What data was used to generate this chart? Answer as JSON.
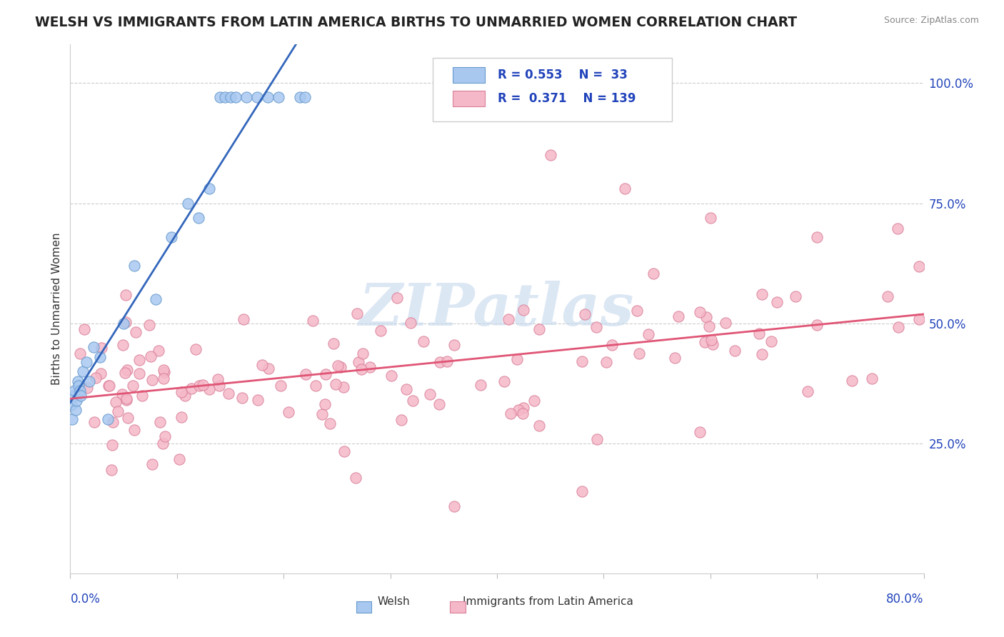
{
  "title": "WELSH VS IMMIGRANTS FROM LATIN AMERICA BIRTHS TO UNMARRIED WOMEN CORRELATION CHART",
  "source": "Source: ZipAtlas.com",
  "ylabel": "Births to Unmarried Women",
  "xmin": 0.0,
  "xmax": 0.8,
  "ymin": -0.02,
  "ymax": 1.08,
  "welsh_R": 0.553,
  "welsh_N": 33,
  "latin_R": 0.371,
  "latin_N": 139,
  "welsh_color": "#a8c8f0",
  "welsh_edge": "#6699cc",
  "latin_color": "#f5b8c8",
  "latin_edge": "#d98099",
  "trend_welsh_color": "#3366bb",
  "trend_latin_color": "#e05575",
  "trend_welsh_dashed_color": "#aabbdd",
  "watermark_color": "#c5d8ee",
  "background_color": "#ffffff",
  "legend_text_color": "#2244bb",
  "right_tick_color": "#2244bb",
  "title_color": "#222222",
  "source_color": "#888888",
  "ylabel_color": "#333333"
}
